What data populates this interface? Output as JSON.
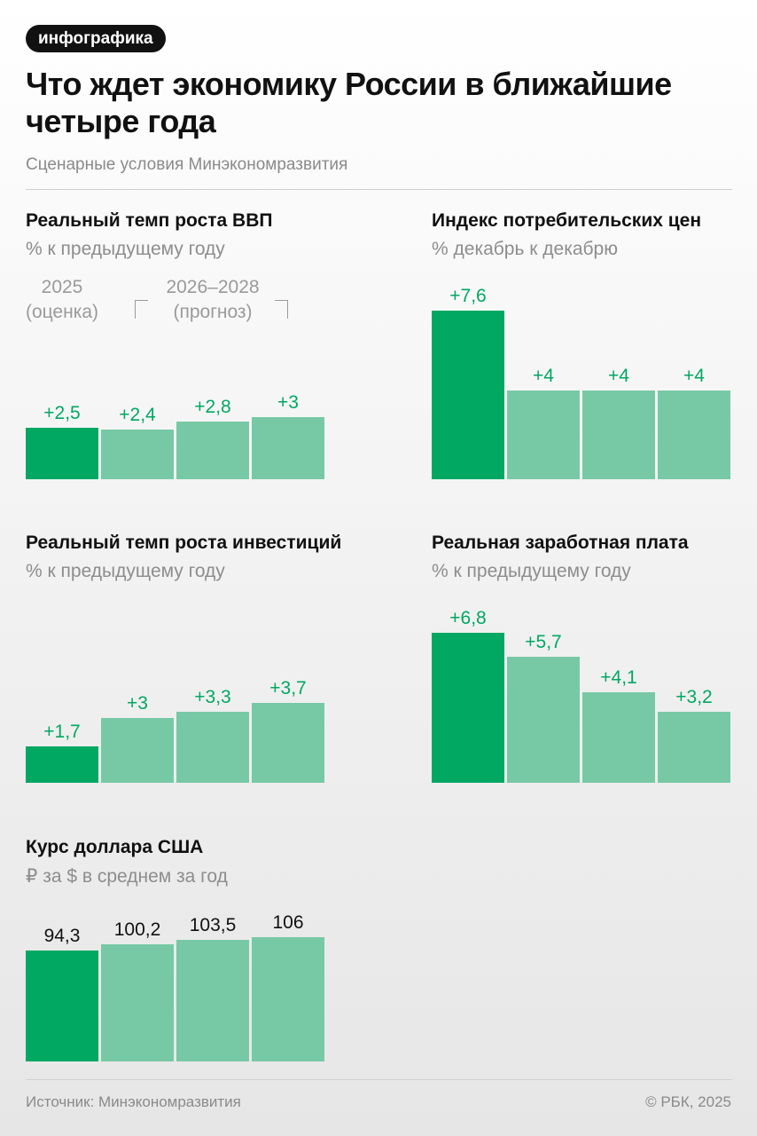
{
  "header": {
    "badge": "инфографика",
    "title": "Что ждет экономику России в ближайшие четыре года",
    "subtitle": "Сценарные условия Минэкономразвития"
  },
  "legend": {
    "estimate_year": "2025",
    "estimate_note": "(оценка)",
    "forecast_years": "2026–2028",
    "forecast_note": "(прогноз)"
  },
  "colors": {
    "estimate": "#00a862",
    "forecast": "#77c9a6",
    "label_positive": "#00a862",
    "label_neutral": "#111111"
  },
  "chart_data": [
    {
      "id": "gdp",
      "type": "bar",
      "title": "Реальный темп роста ВВП",
      "subtitle": "% к предыдущему году",
      "categories": [
        "2025",
        "2026",
        "2027",
        "2028"
      ],
      "values": [
        2.5,
        2.4,
        2.8,
        3.0
      ],
      "labels": [
        "+2,5",
        "+2,4",
        "+2,8",
        "+3"
      ],
      "ylim": [
        0,
        3
      ]
    },
    {
      "id": "cpi",
      "type": "bar",
      "title": "Индекс потребительских цен",
      "subtitle": "% декабрь к декабрю",
      "categories": [
        "2025",
        "2026",
        "2027",
        "2028"
      ],
      "values": [
        7.6,
        4.0,
        4.0,
        4.0
      ],
      "labels": [
        "+7,6",
        "+4",
        "+4",
        "+4"
      ],
      "ylim": [
        0,
        7.6
      ]
    },
    {
      "id": "investment",
      "type": "bar",
      "title": "Реальный темп роста инвестиций",
      "subtitle": "% к предыдущему году",
      "categories": [
        "2025",
        "2026",
        "2027",
        "2028"
      ],
      "values": [
        1.7,
        3.0,
        3.3,
        3.7
      ],
      "labels": [
        "+1,7",
        "+3",
        "+3,3",
        "+3,7"
      ],
      "ylim": [
        0,
        3.7
      ]
    },
    {
      "id": "wages",
      "type": "bar",
      "title": "Реальная заработная плата",
      "subtitle": "% к предыдущему году",
      "categories": [
        "2025",
        "2026",
        "2027",
        "2028"
      ],
      "values": [
        6.8,
        5.7,
        4.1,
        3.2
      ],
      "labels": [
        "+6,8",
        "+5,7",
        "+4,1",
        "+3,2"
      ],
      "ylim": [
        0,
        6.8
      ]
    },
    {
      "id": "usd",
      "type": "bar",
      "title": "Курс доллара США",
      "subtitle": "₽ за $ в среднем за год",
      "categories": [
        "2025",
        "2026",
        "2027",
        "2028"
      ],
      "values": [
        94.3,
        100.2,
        103.5,
        106.0
      ],
      "labels": [
        "94,3",
        "100,2",
        "103,5",
        "106"
      ],
      "ylim": [
        0,
        106
      ]
    }
  ],
  "footer": {
    "source": "Источник: Минэкономразвития",
    "copyright": "© РБК, 2025"
  }
}
